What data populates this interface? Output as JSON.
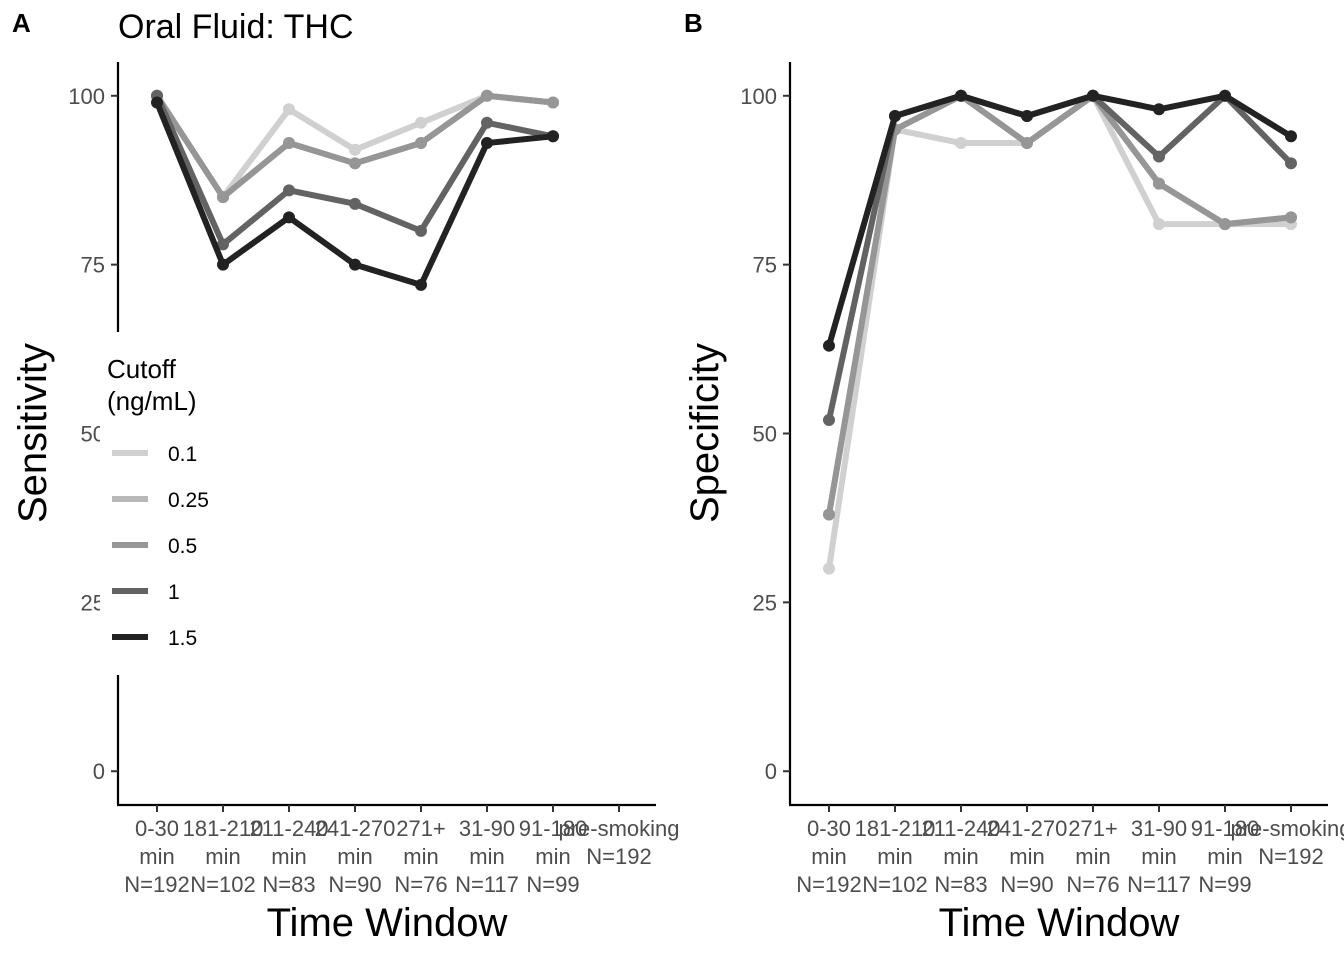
{
  "chart_data": [
    {
      "type": "line",
      "tag": "A",
      "title": "Oral Fluid: THC",
      "xlabel": "Time Window",
      "ylabel": "Sensitivity",
      "ylim": [
        -5,
        105
      ],
      "yticks": [
        0,
        25,
        50,
        75,
        100
      ],
      "grid": false,
      "legend": {
        "title_lines": [
          "Cutoff",
          " (ng/mL)"
        ],
        "placement": "left-inside"
      },
      "categories": [
        [
          "0-30",
          "min",
          "N=192"
        ],
        [
          "181-210",
          "min",
          "N=102"
        ],
        [
          "211-240",
          "min",
          "N=83"
        ],
        [
          "241-270",
          "min",
          "N=90"
        ],
        [
          "271+",
          "min",
          "N=76"
        ],
        [
          "31-90",
          "min",
          "N=117"
        ],
        [
          "91-180",
          "min",
          "N=99"
        ],
        [
          "pre-smoking",
          "N=192"
        ]
      ],
      "series": [
        {
          "name": "0.1",
          "color": "#d0d0d0",
          "values": [
            100,
            85,
            98,
            92,
            96,
            100,
            99,
            null
          ]
        },
        {
          "name": "0.25",
          "color": "#b8b8b8",
          "values": [
            100,
            85,
            93,
            90,
            93,
            100,
            99,
            null
          ]
        },
        {
          "name": "0.5",
          "color": "#969696",
          "values": [
            100,
            85,
            93,
            90,
            93,
            100,
            99,
            null
          ]
        },
        {
          "name": "1",
          "color": "#636363",
          "values": [
            100,
            78,
            86,
            84,
            80,
            96,
            94,
            null
          ]
        },
        {
          "name": "1.5",
          "color": "#222222",
          "values": [
            99,
            75,
            82,
            75,
            72,
            93,
            94,
            null
          ]
        }
      ]
    },
    {
      "type": "line",
      "tag": "B",
      "title": "",
      "xlabel": "Time Window",
      "ylabel": "Specificity",
      "ylim": [
        -5,
        105
      ],
      "yticks": [
        0,
        25,
        50,
        75,
        100
      ],
      "grid": false,
      "categories": [
        [
          "0-30",
          "min",
          "N=192"
        ],
        [
          "181-210",
          "min",
          "N=102"
        ],
        [
          "211-240",
          "min",
          "N=83"
        ],
        [
          "241-270",
          "min",
          "N=90"
        ],
        [
          "271+",
          "min",
          "N=76"
        ],
        [
          "31-90",
          "min",
          "N=117"
        ],
        [
          "91-180",
          "min",
          "N=99"
        ],
        [
          "pre-smoking",
          "N=192"
        ]
      ],
      "series": [
        {
          "name": "0.1",
          "color": "#d0d0d0",
          "values": [
            30,
            95,
            93,
            93,
            100,
            81,
            81,
            81
          ]
        },
        {
          "name": "0.25",
          "color": "#b8b8b8",
          "values": [
            38,
            95,
            100,
            93,
            100,
            87,
            81,
            82
          ]
        },
        {
          "name": "0.5",
          "color": "#969696",
          "values": [
            38,
            95,
            100,
            93,
            100,
            87,
            81,
            82
          ]
        },
        {
          "name": "1",
          "color": "#636363",
          "values": [
            52,
            97,
            100,
            97,
            100,
            91,
            100,
            90
          ]
        },
        {
          "name": "1.5",
          "color": "#222222",
          "values": [
            63,
            97,
            100,
            97,
            100,
            98,
            100,
            94
          ]
        }
      ]
    }
  ]
}
